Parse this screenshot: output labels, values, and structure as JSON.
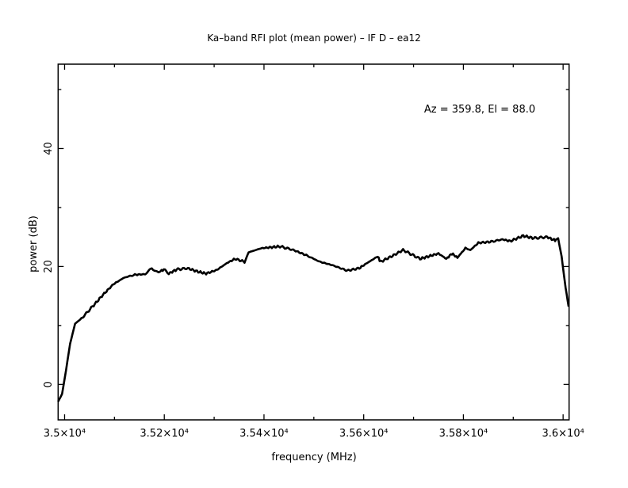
{
  "chart_data": {
    "type": "line",
    "title": "Ka–band RFI plot (mean power) – IF D – ea12",
    "xlabel": "frequency (MHz)",
    "ylabel": "power (dB)",
    "annotation": "Az = 359.8, El = 88.0",
    "xlim": [
      34987,
      36012
    ],
    "ylim": [
      -6,
      54.3
    ],
    "grid": false,
    "x_ticks": [
      {
        "value": 35000,
        "label": "3.5×10⁴"
      },
      {
        "value": 35200,
        "label": "3.52×10⁴"
      },
      {
        "value": 35400,
        "label": "3.54×10⁴"
      },
      {
        "value": 35600,
        "label": "3.56×10⁴"
      },
      {
        "value": 35800,
        "label": "3.58×10⁴"
      },
      {
        "value": 36000,
        "label": "3.6×10⁴"
      }
    ],
    "y_ticks": [
      {
        "value": 0,
        "label": "0"
      },
      {
        "value": 20,
        "label": "20"
      },
      {
        "value": 40,
        "label": "40"
      }
    ],
    "line_color": "#000000",
    "series": [
      {
        "x": [
          34987,
          34995,
          35003,
          35011,
          35021,
          35034,
          35056,
          35077,
          35098,
          35119,
          35141,
          35162,
          35175,
          35188,
          35199,
          35209,
          35225,
          35247,
          35268,
          35284,
          35305,
          35326,
          35342,
          35361,
          35369,
          35395,
          35432,
          35459,
          35485,
          35512,
          35538,
          35567,
          35591,
          35607,
          35628,
          35634,
          35660,
          35679,
          35713,
          35750,
          35766,
          35777,
          35788,
          35804,
          35814,
          35830,
          35856,
          35878,
          35894,
          35920,
          35941,
          35968,
          35984,
          35990,
          35997,
          36005,
          36011
        ],
        "y": [
          -2.9,
          -1.6,
          2.5,
          6.9,
          10.3,
          11.2,
          13.2,
          15.2,
          17.0,
          18.1,
          18.6,
          18.7,
          19.7,
          19.0,
          19.5,
          18.8,
          19.5,
          19.7,
          19.1,
          18.8,
          19.4,
          20.6,
          21.3,
          20.8,
          22.4,
          23.1,
          23.4,
          22.8,
          21.9,
          20.8,
          20.2,
          19.3,
          19.7,
          20.6,
          21.7,
          20.8,
          21.9,
          22.8,
          21.3,
          22.2,
          21.3,
          22.2,
          21.5,
          23.1,
          22.8,
          24.0,
          24.2,
          24.6,
          24.3,
          25.2,
          24.8,
          25.0,
          24.4,
          24.8,
          21.7,
          16.4,
          13.2
        ]
      }
    ]
  }
}
